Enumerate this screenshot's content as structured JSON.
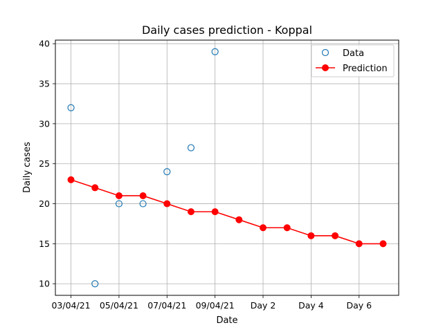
{
  "chart_data": {
    "type": "line",
    "title": "Daily cases prediction - Koppal",
    "xlabel": "Date",
    "ylabel": "Daily cases",
    "x_tick_labels": [
      "03/04/21",
      "05/04/21",
      "07/04/21",
      "09/04/21",
      "Day 2",
      "Day 4",
      "Day 6"
    ],
    "x_tick_positions": [
      0,
      2,
      4,
      6,
      8,
      10,
      12
    ],
    "xlim": [
      -0.65,
      13.65
    ],
    "y_ticks": [
      10,
      15,
      20,
      25,
      30,
      35,
      40
    ],
    "ylim": [
      8.55,
      40.45
    ],
    "grid": true,
    "legend_position": "top-right",
    "series": [
      {
        "name": "Data",
        "style": "hollow-markers",
        "color": "#1f77b4",
        "x": [
          0,
          1,
          2,
          3,
          4,
          5,
          6
        ],
        "values": [
          32,
          10,
          20,
          20,
          24,
          27,
          39
        ]
      },
      {
        "name": "Prediction",
        "style": "line-markers",
        "color": "#ff0000",
        "x": [
          0,
          1,
          2,
          3,
          4,
          5,
          6,
          7,
          8,
          9,
          10,
          11,
          12,
          13
        ],
        "values": [
          23,
          22,
          21,
          21,
          20,
          19,
          19,
          18,
          17,
          17,
          16,
          16,
          15,
          15
        ]
      }
    ]
  }
}
